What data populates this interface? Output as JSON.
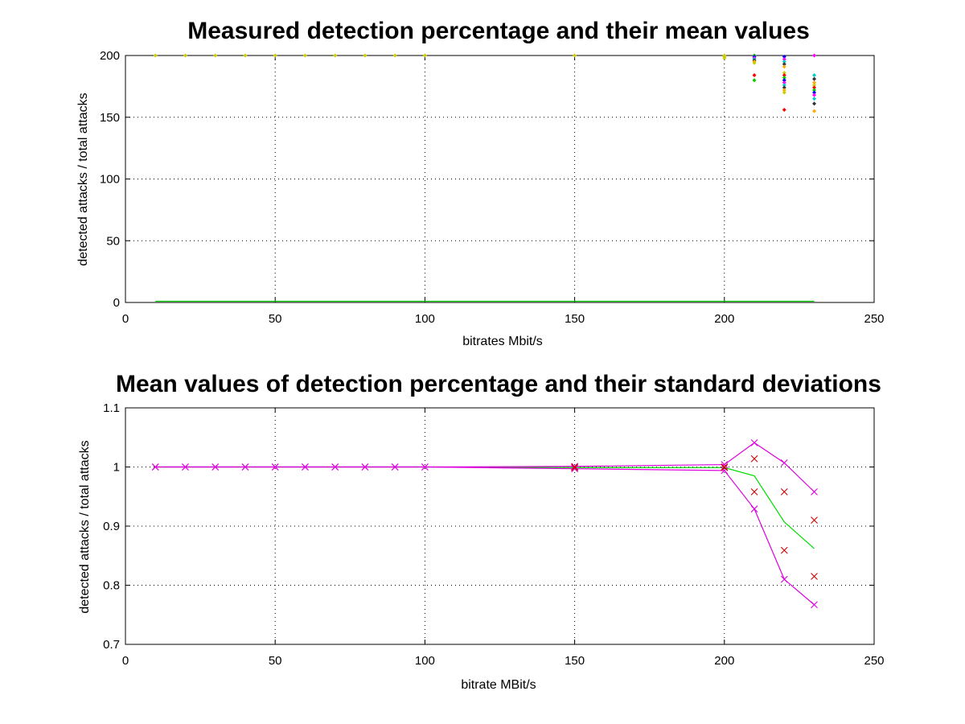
{
  "chart_data": [
    {
      "type": "scatter",
      "title": "Measured detection percentage and their mean values",
      "xlabel": "bitrates Mbit/s",
      "ylabel": "detected attacks / total attacks",
      "xlim": [
        0,
        250
      ],
      "ylim": [
        0,
        200
      ],
      "xticks": [
        0,
        50,
        100,
        150,
        200,
        250
      ],
      "yticks": [
        0,
        50,
        100,
        150,
        200
      ],
      "grid": true,
      "legend": "none",
      "colors": [
        "#ff0000",
        "#00cc00",
        "#0000ff",
        "#ff00ff",
        "#00cccc",
        "#333333",
        "#ffaa00",
        "#cccc00"
      ],
      "series": [
        {
          "values": [
            {
              "x": 10,
              "y": 200
            },
            {
              "x": 20,
              "y": 200
            },
            {
              "x": 30,
              "y": 200
            },
            {
              "x": 40,
              "y": 200
            },
            {
              "x": 50,
              "y": 200
            },
            {
              "x": 60,
              "y": 200
            },
            {
              "x": 70,
              "y": 200
            },
            {
              "x": 80,
              "y": 200
            },
            {
              "x": 90,
              "y": 200
            },
            {
              "x": 100,
              "y": 200
            },
            {
              "x": 150,
              "y": 200
            },
            {
              "x": 200,
              "y": 200
            },
            {
              "x": 200,
              "y": 199
            },
            {
              "x": 200,
              "y": 198
            }
          ],
          "color": "#cccc00"
        },
        {
          "values": [
            {
              "x": 210,
              "y": 200
            },
            {
              "x": 210,
              "y": 199
            },
            {
              "x": 210,
              "y": 198
            },
            {
              "x": 210,
              "y": 197
            },
            {
              "x": 210,
              "y": 196
            },
            {
              "x": 210,
              "y": 195
            },
            {
              "x": 210,
              "y": 194
            },
            {
              "x": 210,
              "y": 184
            },
            {
              "x": 210,
              "y": 180
            }
          ],
          "color": "mixed"
        },
        {
          "values": [
            {
              "x": 220,
              "y": 199
            },
            {
              "x": 220,
              "y": 197
            },
            {
              "x": 220,
              "y": 195
            },
            {
              "x": 220,
              "y": 193
            },
            {
              "x": 220,
              "y": 191
            },
            {
              "x": 220,
              "y": 186
            },
            {
              "x": 220,
              "y": 184
            },
            {
              "x": 220,
              "y": 182
            },
            {
              "x": 220,
              "y": 180
            },
            {
              "x": 220,
              "y": 178
            },
            {
              "x": 220,
              "y": 176
            },
            {
              "x": 220,
              "y": 174
            },
            {
              "x": 220,
              "y": 172
            },
            {
              "x": 220,
              "y": 170
            },
            {
              "x": 220,
              "y": 156
            }
          ],
          "color": "mixed"
        },
        {
          "values": [
            {
              "x": 230,
              "y": 200
            },
            {
              "x": 230,
              "y": 184
            },
            {
              "x": 230,
              "y": 181
            },
            {
              "x": 230,
              "y": 178
            },
            {
              "x": 230,
              "y": 176
            },
            {
              "x": 230,
              "y": 174
            },
            {
              "x": 230,
              "y": 172
            },
            {
              "x": 230,
              "y": 170
            },
            {
              "x": 230,
              "y": 168
            },
            {
              "x": 230,
              "y": 165
            },
            {
              "x": 230,
              "y": 161
            },
            {
              "x": 230,
              "y": 155
            }
          ],
          "color": "mixed"
        },
        {
          "type": "line",
          "color": "#00cc00",
          "x": [
            10,
            230
          ],
          "y": [
            1,
            1
          ]
        }
      ]
    },
    {
      "type": "line",
      "title": "Mean values of detection percentage and their standard deviations",
      "xlabel": "bitrate MBit/s",
      "ylabel": "detected attacks / total attacks",
      "xlim": [
        0,
        250
      ],
      "ylim": [
        0.7,
        1.1
      ],
      "xticks": [
        0,
        50,
        100,
        150,
        200,
        250
      ],
      "yticks": [
        "0.7",
        "0.8",
        "0.9",
        "1",
        "1.1"
      ],
      "grid": true,
      "legend": "none",
      "x": [
        10,
        20,
        30,
        40,
        50,
        60,
        70,
        80,
        90,
        100,
        150,
        200,
        210,
        220,
        230
      ],
      "series": [
        {
          "color": "#00dd00",
          "marker": "none",
          "values": [
            1,
            1,
            1,
            1,
            1,
            1,
            1,
            1,
            1,
            1,
            0.999,
            0.999,
            0.985,
            0.907,
            0.862
          ]
        },
        {
          "color": "#dd00dd",
          "marker": "x",
          "values": [
            1,
            1,
            1,
            1,
            1,
            1,
            1,
            1,
            1,
            1,
            1.001,
            1.004,
            1.041,
            1.007,
            0.958
          ]
        },
        {
          "color": "#dd00dd",
          "marker": "x",
          "values": [
            1,
            1,
            1,
            1,
            1,
            1,
            1,
            1,
            1,
            1,
            0.997,
            0.994,
            0.929,
            0.81,
            0.767
          ]
        },
        {
          "color": "#cc0000",
          "marker": "x-only",
          "x": [
            150,
            150,
            200,
            200,
            210,
            210,
            220,
            220,
            230,
            230
          ],
          "values": [
            1.0,
            0.999,
            1.0,
            0.999,
            1.014,
            0.958,
            0.958,
            0.859,
            0.91,
            0.815
          ]
        }
      ]
    }
  ]
}
